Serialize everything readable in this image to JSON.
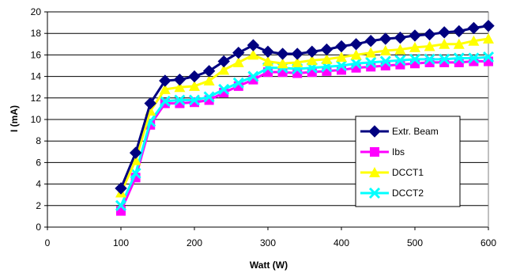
{
  "chart_data": {
    "type": "line",
    "xlabel": "Watt (W)",
    "ylabel": "I (mA)",
    "xlim": [
      0,
      600
    ],
    "ylim": [
      0,
      20
    ],
    "xticks": [
      0,
      100,
      200,
      300,
      400,
      500,
      600
    ],
    "yticks": [
      0,
      2,
      4,
      6,
      8,
      10,
      12,
      14,
      16,
      18,
      20
    ],
    "grid": "horizontal",
    "legend_position": "right",
    "x": [
      100,
      120,
      140,
      160,
      180,
      200,
      220,
      240,
      260,
      280,
      300,
      320,
      340,
      360,
      380,
      400,
      420,
      440,
      460,
      480,
      500,
      520,
      540,
      560,
      580,
      600
    ],
    "series": [
      {
        "name": "Extr. Beam",
        "color": "#000080",
        "marker": "diamond",
        "values": [
          3.6,
          6.9,
          11.5,
          13.6,
          13.7,
          14.0,
          14.5,
          15.4,
          16.2,
          16.9,
          16.3,
          16.1,
          16.1,
          16.3,
          16.5,
          16.8,
          17.0,
          17.3,
          17.5,
          17.6,
          17.8,
          17.9,
          18.1,
          18.2,
          18.5,
          18.7
        ]
      },
      {
        "name": "Ibs",
        "color": "#ff00ff",
        "marker": "square",
        "values": [
          1.5,
          4.6,
          9.5,
          11.5,
          11.5,
          11.6,
          11.8,
          12.5,
          13.1,
          13.7,
          14.4,
          14.4,
          14.3,
          14.4,
          14.5,
          14.6,
          14.8,
          14.9,
          15.0,
          15.1,
          15.2,
          15.3,
          15.3,
          15.3,
          15.4,
          15.4
        ]
      },
      {
        "name": "DCCT1",
        "color": "#ffff00",
        "marker": "triangle",
        "values": [
          3.2,
          6.2,
          10.8,
          12.8,
          13.0,
          13.1,
          13.6,
          14.6,
          15.3,
          16.0,
          15.4,
          15.2,
          15.3,
          15.5,
          15.6,
          15.8,
          16.0,
          16.2,
          16.4,
          16.5,
          16.7,
          16.8,
          17.0,
          17.0,
          17.3,
          17.5
        ]
      },
      {
        "name": "DCCT2",
        "color": "#00ffff",
        "marker": "x",
        "values": [
          2.0,
          5.0,
          9.8,
          11.7,
          11.8,
          11.8,
          12.1,
          12.8,
          13.4,
          14.0,
          14.8,
          14.8,
          14.7,
          14.8,
          14.9,
          15.0,
          15.2,
          15.3,
          15.4,
          15.5,
          15.6,
          15.6,
          15.6,
          15.7,
          15.7,
          15.8
        ]
      }
    ]
  }
}
